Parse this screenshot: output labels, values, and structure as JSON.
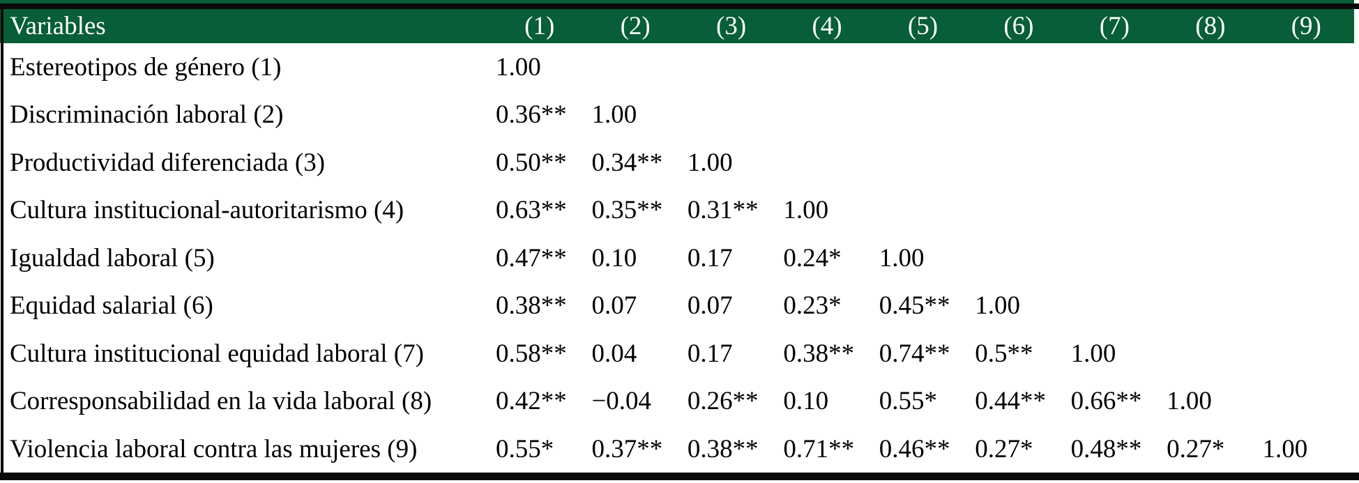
{
  "colors": {
    "header_green": "#085e36",
    "border_black": "#0a0a0a",
    "text_black": "#000000",
    "header_text": "#ffffff"
  },
  "table": {
    "header": {
      "variables_label": "Variables",
      "columns": [
        "(1)",
        "(2)",
        "(3)",
        "(4)",
        "(5)",
        "(6)",
        "(7)",
        "(8)",
        "(9)"
      ]
    },
    "rows": [
      {
        "label": "Estereotipos de género (1)",
        "values": [
          "1.00",
          "",
          "",
          "",
          "",
          "",
          "",
          "",
          ""
        ]
      },
      {
        "label": "Discriminación laboral (2)",
        "values": [
          "0.36**",
          "1.00",
          "",
          "",
          "",
          "",
          "",
          "",
          ""
        ]
      },
      {
        "label": "Productividad diferenciada (3)",
        "values": [
          "0.50**",
          "0.34**",
          "1.00",
          "",
          "",
          "",
          "",
          "",
          ""
        ]
      },
      {
        "label": "Cultura institucional-autoritarismo (4)",
        "values": [
          "0.63**",
          "0.35**",
          "0.31**",
          "1.00",
          "",
          "",
          "",
          "",
          ""
        ]
      },
      {
        "label": "Igualdad laboral (5)",
        "values": [
          "0.47**",
          "0.10",
          "0.17",
          "0.24*",
          "1.00",
          "",
          "",
          "",
          ""
        ]
      },
      {
        "label": "Equidad salarial (6)",
        "values": [
          "0.38**",
          "0.07",
          "0.07",
          "0.23*",
          "0.45**",
          "1.00",
          "",
          "",
          ""
        ]
      },
      {
        "label": "Cultura institucional equidad laboral (7)",
        "values": [
          "0.58**",
          "0.04",
          "0.17",
          "0.38**",
          "0.74**",
          "0.5**",
          "1.00",
          "",
          ""
        ]
      },
      {
        "label": "Corresponsabilidad en la vida laboral (8)",
        "values": [
          "0.42**",
          "−0.04",
          "0.26**",
          "0.10",
          "0.55*",
          "0.44**",
          "0.66**",
          "1.00",
          ""
        ]
      },
      {
        "label": "Violencia laboral contra las mujeres (9)",
        "values": [
          "0.55*",
          "0.37**",
          "0.38**",
          "0.71**",
          "0.46**",
          "0.27*",
          "0.48**",
          "0.27*",
          "1.00"
        ]
      }
    ]
  }
}
